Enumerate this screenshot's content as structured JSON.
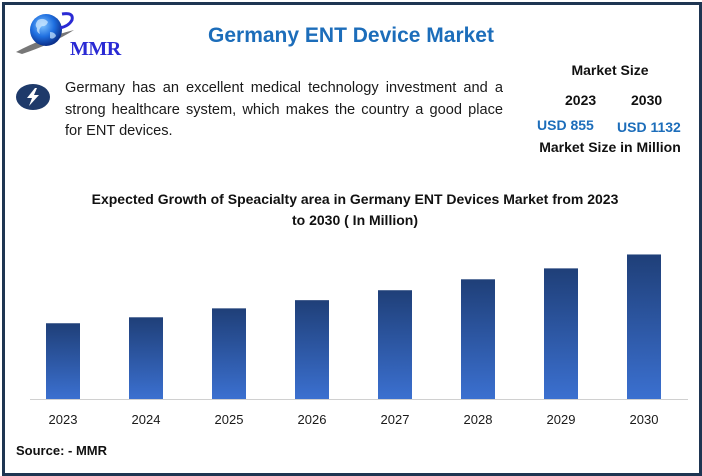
{
  "header": {
    "logo_text": "MMR",
    "title": "Germany ENT Device Market"
  },
  "description": {
    "icon": "lightning-bolt-icon",
    "text": "Germany has an excellent medical technology investment and a strong healthcare system, which makes the country a good place for ENT devices."
  },
  "market_size": {
    "title": "Market Size",
    "year_start": "2023",
    "year_end": "2030",
    "value_start": "USD 855",
    "value_end": "USD 1132",
    "footnote": "Market Size in Million"
  },
  "footer": {
    "source": "Source: - MMR"
  },
  "colors": {
    "title_blue": "#1c6dba",
    "bar_top": "#1f3f78",
    "bar_bottom": "#3b70d0",
    "frame": "#1e3552",
    "icon_bg": "#1e3a6a"
  },
  "chart_data": {
    "type": "bar",
    "title": "Expected Growth of Speacialty area in Germany ENT Devices Market from 2023 to 2030 ( In Million)",
    "title_line1": "Expected Growth of Speacialty area in Germany ENT Devices Market from 2023",
    "title_line2": "to 2030 ( In Million)",
    "xlabel": "",
    "ylabel": "",
    "categories": [
      "2023",
      "2024",
      "2025",
      "2026",
      "2027",
      "2028",
      "2029",
      "2030"
    ],
    "values": [
      855,
      879,
      915,
      948,
      988,
      1032,
      1076,
      1132
    ],
    "ylim": [
      550,
      1150
    ],
    "grid": false,
    "legend": "none",
    "y_axis_visible": false
  }
}
